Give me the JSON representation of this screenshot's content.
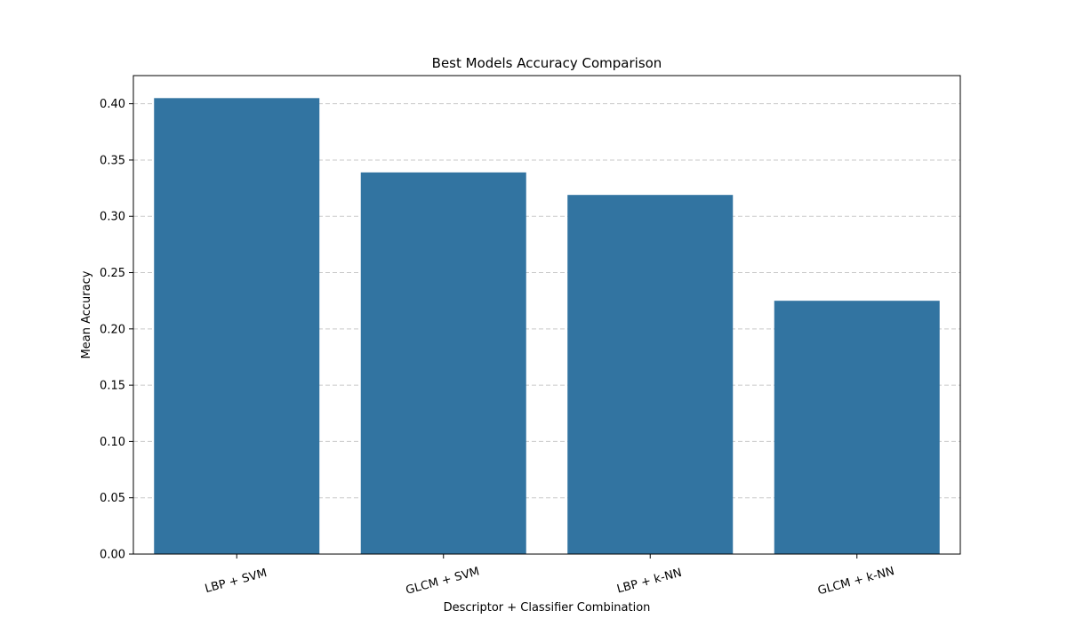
{
  "chart_data": {
    "type": "bar",
    "title": "Best Models Accuracy Comparison",
    "xlabel": "Descriptor + Classifier Combination",
    "ylabel": "Mean Accuracy",
    "categories": [
      "LBP + SVM",
      "GLCM + SVM",
      "LBP + k-NN",
      "GLCM + k-NN"
    ],
    "values": [
      0.405,
      0.339,
      0.319,
      0.225
    ],
    "ylim": [
      0,
      0.425
    ],
    "yticks": [
      0.0,
      0.05,
      0.1,
      0.15,
      0.2,
      0.25,
      0.3,
      0.35,
      0.4
    ],
    "ytick_labels": [
      "0.00",
      "0.05",
      "0.10",
      "0.15",
      "0.20",
      "0.25",
      "0.30",
      "0.35",
      "0.40"
    ],
    "grid": "y dashed",
    "bar_color": "#3274a1",
    "grid_color": "#c8c8c8"
  }
}
